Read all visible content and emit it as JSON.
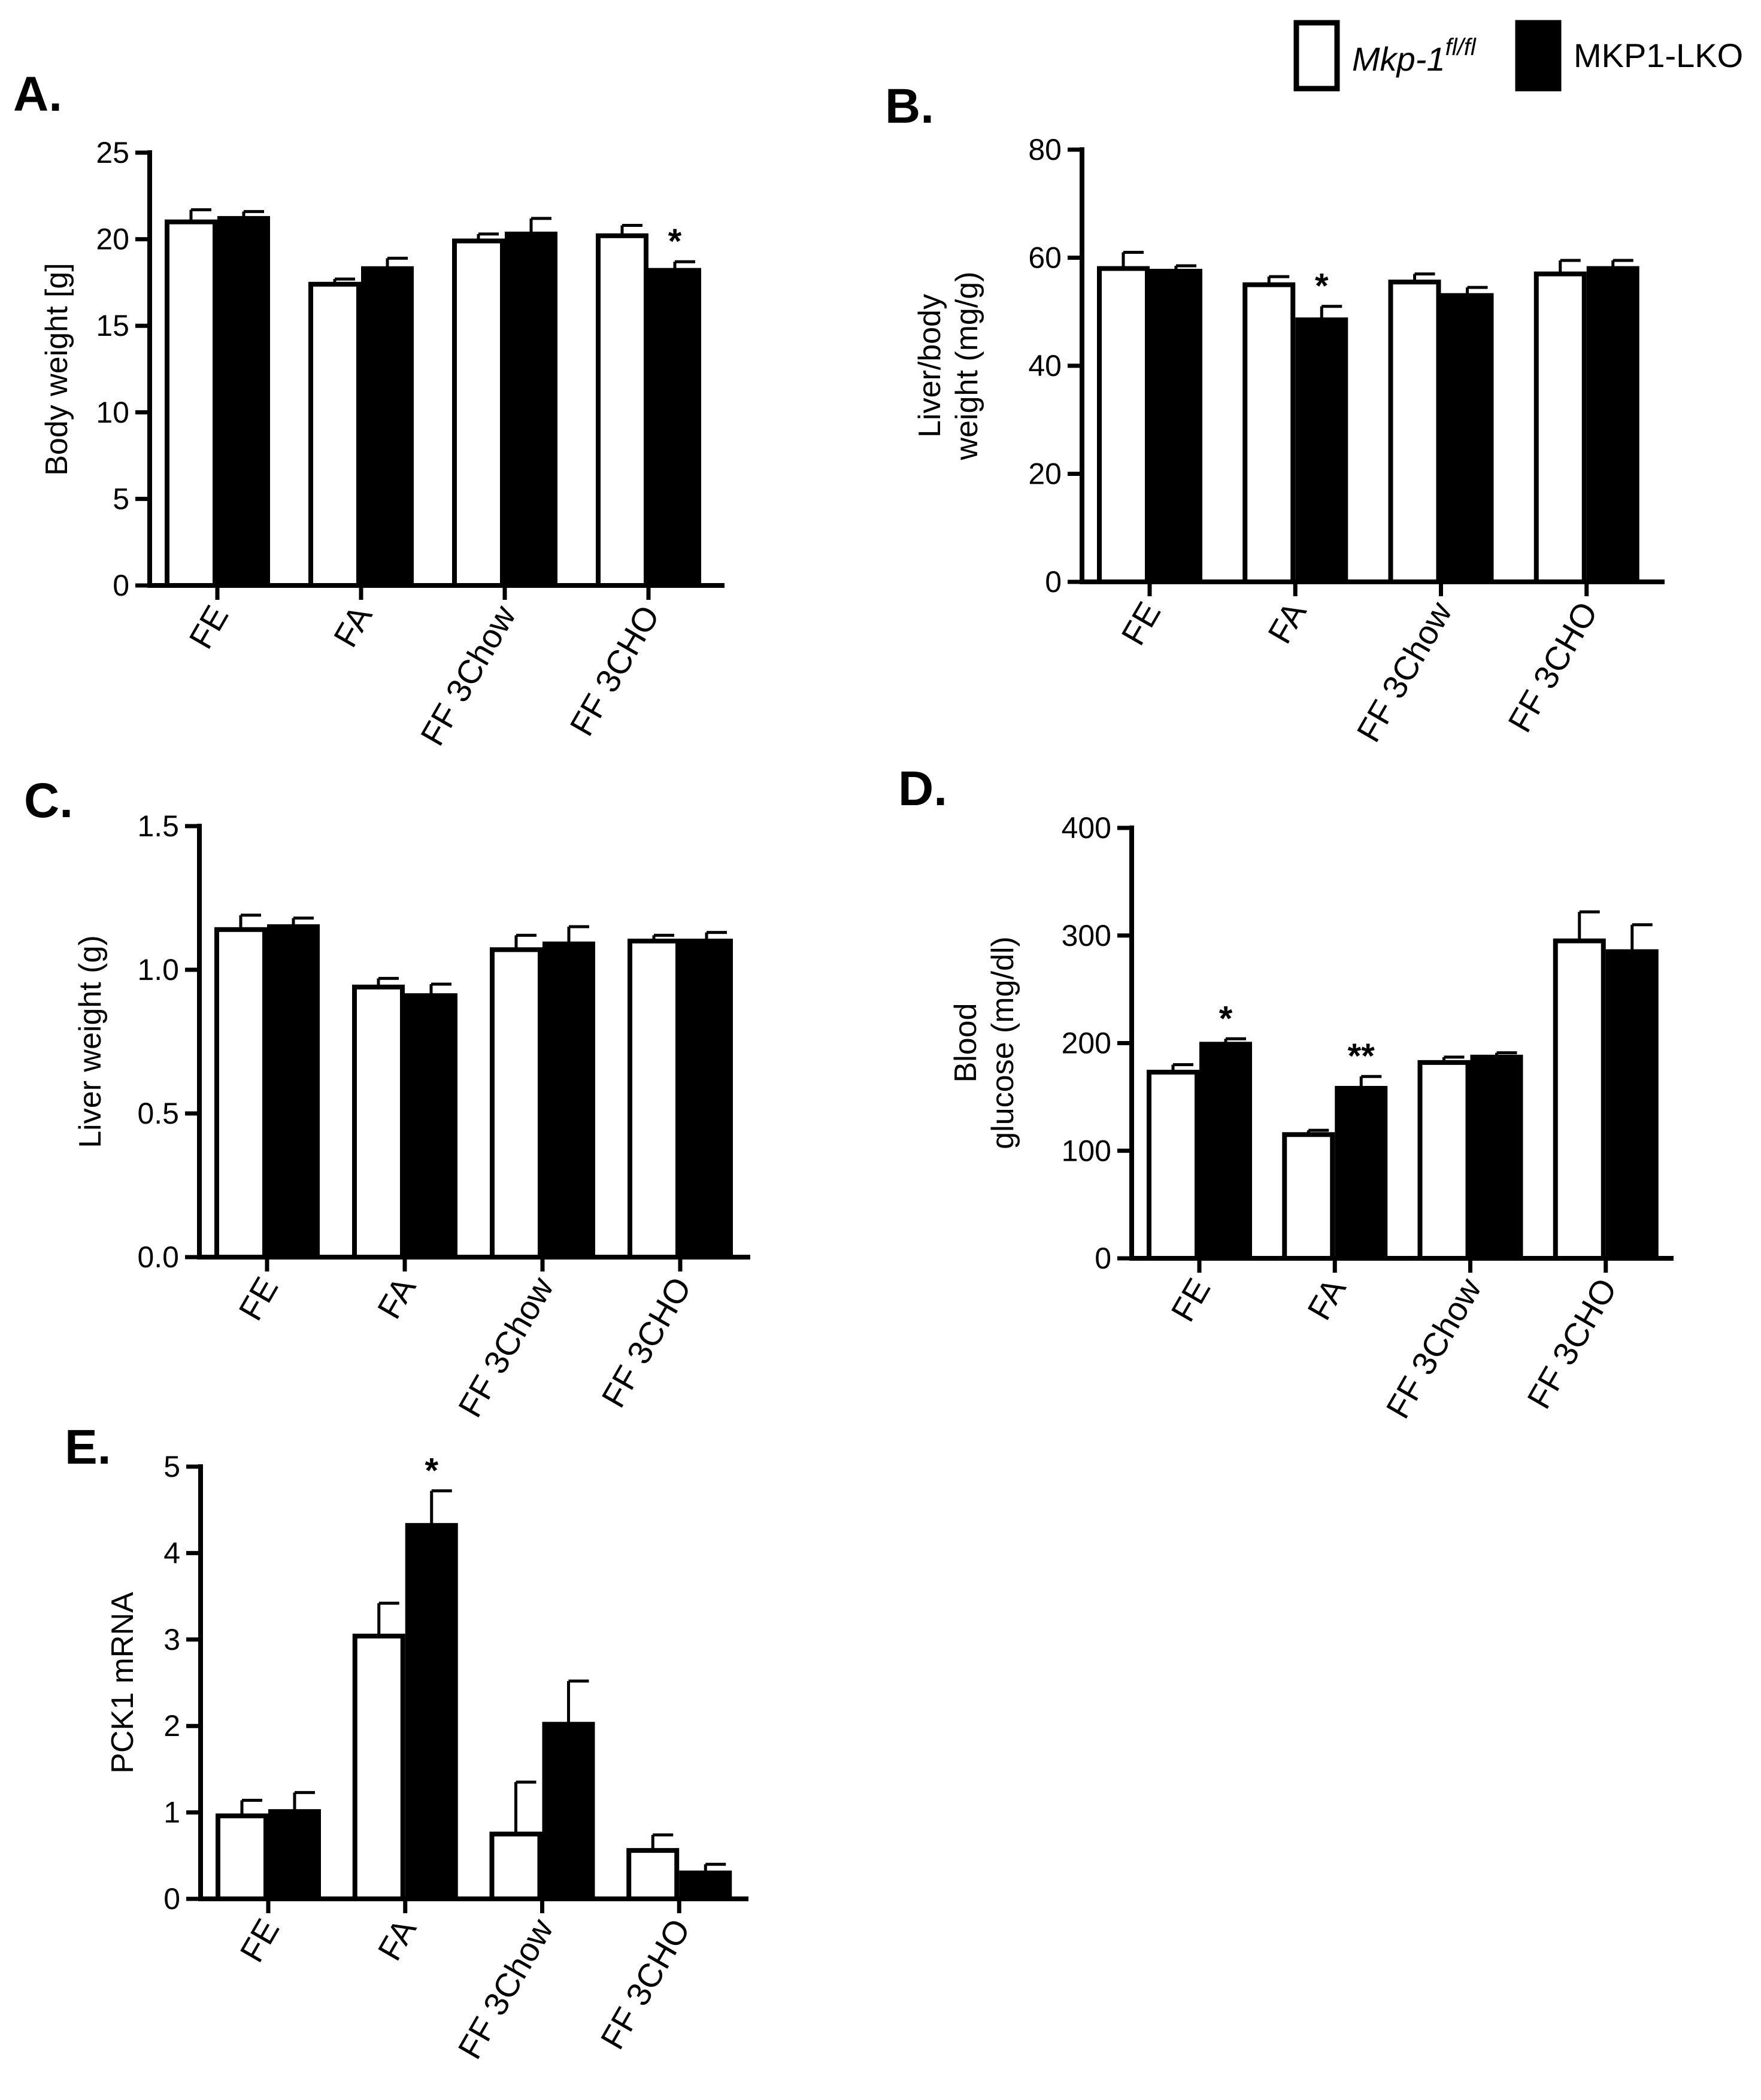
{
  "legend": {
    "items": [
      {
        "prefix": "Mkp-1",
        "sup": "fl/fl",
        "label": "",
        "fill": "#ffffff"
      },
      {
        "prefix": "",
        "sup": "",
        "label": "MKP1-LKO",
        "fill": "#000000"
      }
    ]
  },
  "colors": {
    "wt": "#ffffff",
    "ko": "#000000",
    "stroke": "#000000"
  },
  "chart_data": [
    {
      "id": "A",
      "letter": "A.",
      "type": "bar",
      "ylabel_lines": [
        "Body weight [g]"
      ],
      "categories": [
        "FE",
        "FA",
        "FF 3Chow",
        "FF 3CHO"
      ],
      "ylim": [
        0,
        25
      ],
      "ticks": [
        0,
        5,
        10,
        15,
        20,
        25
      ],
      "tick_labels": [
        "0",
        "5",
        "10",
        "15",
        "20",
        "25"
      ],
      "series": [
        {
          "name": "Mkp-1 fl/fl",
          "values": [
            21.0,
            17.4,
            19.9,
            20.2
          ],
          "errors": [
            0.7,
            0.3,
            0.4,
            0.6
          ]
        },
        {
          "name": "MKP1-LKO",
          "values": [
            21.2,
            18.3,
            20.3,
            18.2
          ],
          "errors": [
            0.4,
            0.6,
            0.9,
            0.5
          ]
        }
      ],
      "annotations": [
        {
          "category": 3,
          "series": 1,
          "text": "*"
        }
      ]
    },
    {
      "id": "B",
      "letter": "B.",
      "type": "bar",
      "ylabel_lines": [
        "Liver/body",
        "weight (mg/g)"
      ],
      "categories": [
        "FE",
        "FA",
        "FF 3Chow",
        "FF 3CHO"
      ],
      "ylim": [
        0,
        80
      ],
      "ticks": [
        0,
        20,
        40,
        60,
        80
      ],
      "tick_labels": [
        "0",
        "20",
        "40",
        "60",
        "80"
      ],
      "series": [
        {
          "name": "Mkp-1 fl/fl",
          "values": [
            58.0,
            55.0,
            55.5,
            57.0
          ],
          "errors": [
            3.0,
            1.5,
            1.5,
            2.5
          ]
        },
        {
          "name": "MKP1-LKO",
          "values": [
            57.5,
            48.5,
            53.0,
            58.0
          ],
          "errors": [
            1.0,
            2.5,
            1.5,
            1.5
          ]
        }
      ],
      "annotations": [
        {
          "category": 1,
          "series": 1,
          "text": "*"
        }
      ]
    },
    {
      "id": "C",
      "letter": "C.",
      "type": "bar",
      "ylabel_lines": [
        "Liver weight  (g)"
      ],
      "categories": [
        "FE",
        "FA",
        "FF 3Chow",
        "FF 3CHO"
      ],
      "ylim": [
        0,
        1.5
      ],
      "ticks": [
        0,
        0.5,
        1.0,
        1.5
      ],
      "tick_labels": [
        "0.0",
        "0.5",
        "1.0",
        "1.5"
      ],
      "series": [
        {
          "name": "Mkp-1 fl/fl",
          "values": [
            1.14,
            0.94,
            1.07,
            1.1
          ],
          "errors": [
            0.05,
            0.03,
            0.05,
            0.02
          ]
        },
        {
          "name": "MKP1-LKO",
          "values": [
            1.15,
            0.91,
            1.09,
            1.1
          ],
          "errors": [
            0.03,
            0.04,
            0.06,
            0.03
          ]
        }
      ],
      "annotations": []
    },
    {
      "id": "D",
      "letter": "D.",
      "type": "bar",
      "ylabel_lines": [
        "Blood",
        "glucose (mg/dl)"
      ],
      "categories": [
        "FE",
        "FA",
        "FF 3Chow",
        "FF 3CHO"
      ],
      "ylim": [
        0,
        400
      ],
      "ticks": [
        0,
        100,
        200,
        300,
        400
      ],
      "tick_labels": [
        "0",
        "100",
        "200",
        "300",
        "400"
      ],
      "series": [
        {
          "name": "Mkp-1 fl/fl",
          "values": [
            173,
            115,
            182,
            295
          ],
          "errors": [
            7,
            4,
            5,
            27
          ]
        },
        {
          "name": "MKP1-LKO",
          "values": [
            199,
            158,
            187,
            285
          ],
          "errors": [
            5,
            11,
            4,
            25
          ]
        }
      ],
      "annotations": [
        {
          "category": 0,
          "series": 1,
          "text": "*"
        },
        {
          "category": 1,
          "series": 1,
          "text": "**"
        }
      ]
    },
    {
      "id": "E",
      "letter": "E.",
      "type": "bar",
      "ylabel_lines": [
        "PCK1 mRNA"
      ],
      "categories": [
        "FE",
        "FA",
        "FF 3Chow",
        "FF 3CHO"
      ],
      "ylim": [
        0,
        5
      ],
      "ticks": [
        0,
        1,
        2,
        3,
        4,
        5
      ],
      "tick_labels": [
        "0",
        "1",
        "2",
        "3",
        "4",
        "5"
      ],
      "series": [
        {
          "name": "Mkp-1 fl/fl",
          "values": [
            0.96,
            3.04,
            0.75,
            0.56
          ],
          "errors": [
            0.18,
            0.38,
            0.6,
            0.18
          ]
        },
        {
          "name": "MKP1-LKO",
          "values": [
            1.01,
            4.32,
            2.02,
            0.3
          ],
          "errors": [
            0.22,
            0.4,
            0.5,
            0.1
          ]
        }
      ],
      "annotations": [
        {
          "category": 1,
          "series": 1,
          "text": "*"
        }
      ]
    }
  ]
}
